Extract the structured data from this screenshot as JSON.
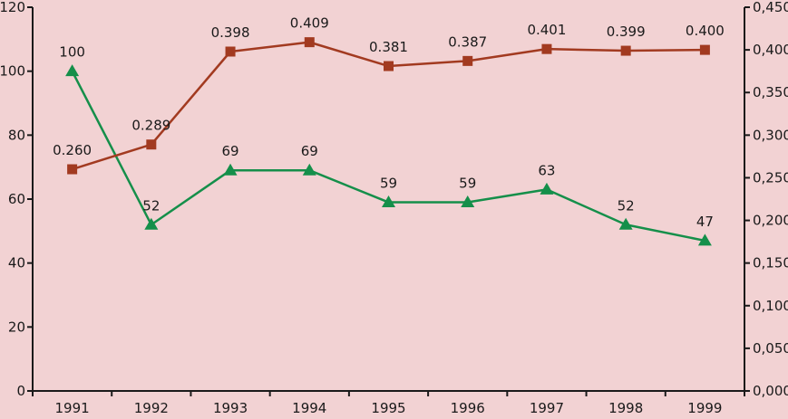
{
  "chart_data": {
    "type": "line",
    "categories": [
      "1991",
      "1992",
      "1993",
      "1994",
      "1995",
      "1996",
      "1997",
      "1998",
      "1999"
    ],
    "series": [
      {
        "name": "green-triangle-series",
        "axis": "left",
        "marker": "triangle",
        "color": "#158f4a",
        "values": [
          100,
          52,
          69,
          69,
          59,
          59,
          63,
          52,
          47
        ],
        "labels": [
          "100",
          "52",
          "69",
          "69",
          "59",
          "59",
          "63",
          "52",
          "47"
        ]
      },
      {
        "name": "red-square-series",
        "axis": "right",
        "marker": "square",
        "color": "#a23a20",
        "values": [
          0.26,
          0.289,
          0.398,
          0.409,
          0.381,
          0.387,
          0.401,
          0.399,
          0.4
        ],
        "labels": [
          "0.260",
          "0.289",
          "0.398",
          "0.409",
          "0.381",
          "0.387",
          "0.401",
          "0.399",
          "0.400"
        ]
      }
    ],
    "left_axis": {
      "min": 0,
      "max": 120,
      "step": 20,
      "tick_labels": [
        "0",
        "20",
        "40",
        "60",
        "80",
        "100",
        "120"
      ]
    },
    "right_axis": {
      "min": 0,
      "max": 0.45,
      "step": 0.05,
      "tick_labels": [
        "0,000",
        "0,050",
        "0,100",
        "0,150",
        "0,200",
        "0,250",
        "0,300",
        "0,350",
        "0,400",
        "0,450"
      ]
    },
    "background": "#f2d2d3",
    "axis_color": "#1a1a1a",
    "label_color": "#1a1a1a",
    "grid": false,
    "legend": "none"
  }
}
